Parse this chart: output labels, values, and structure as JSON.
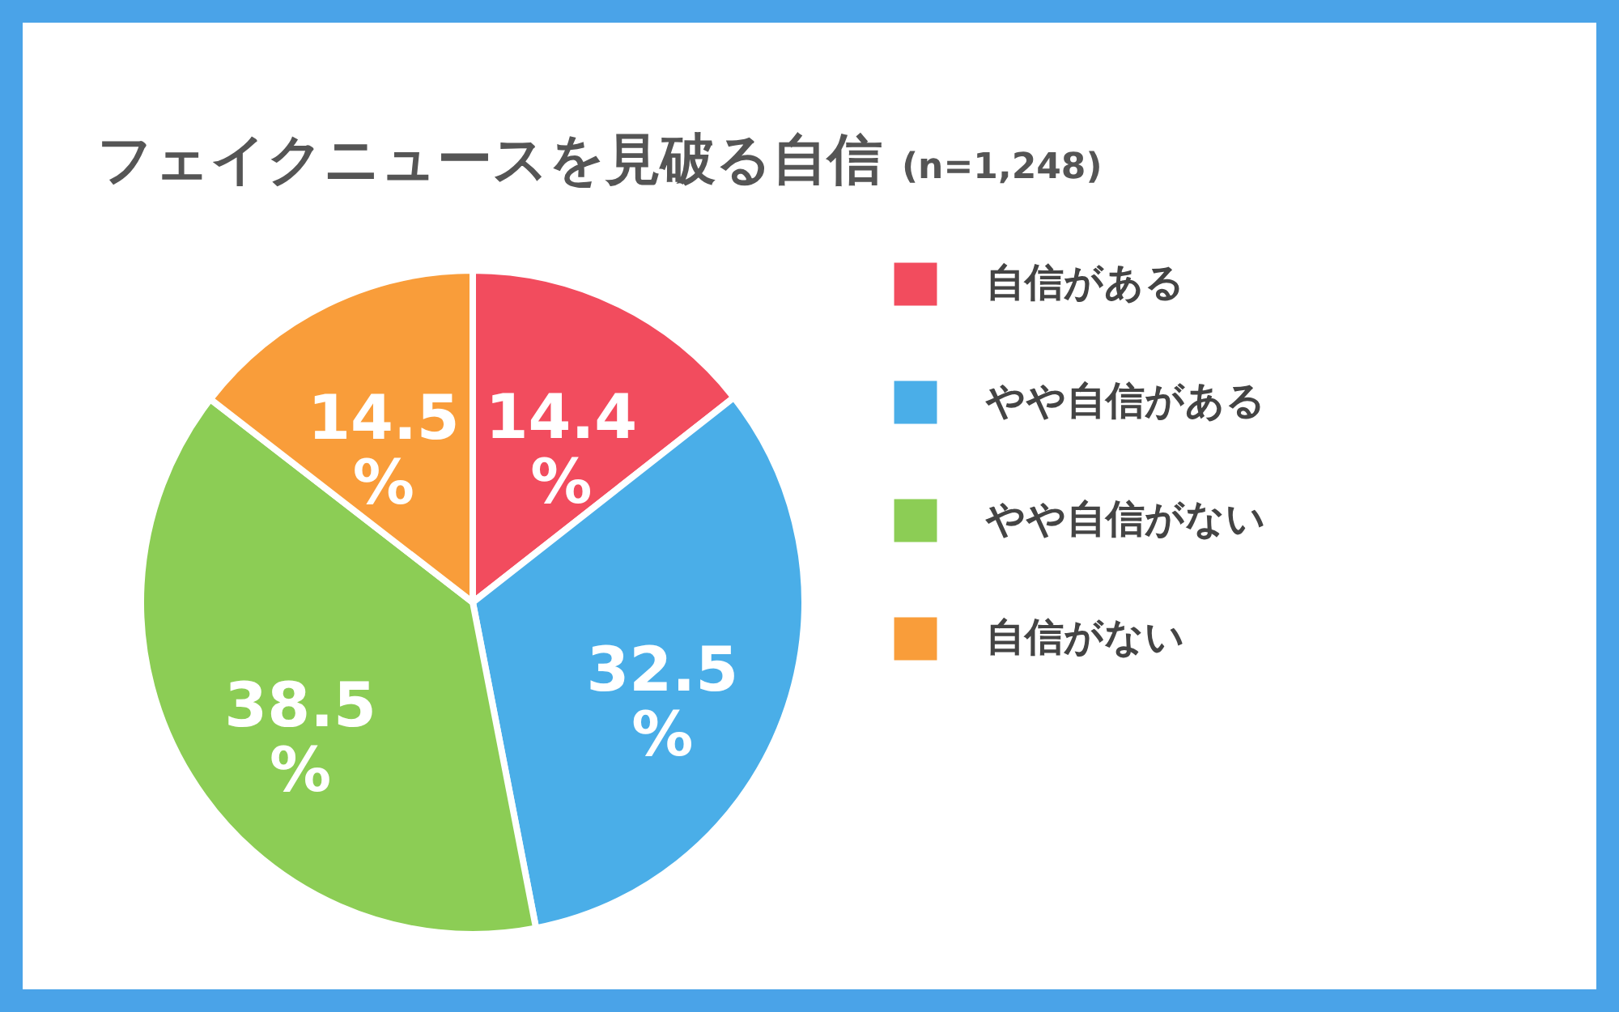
{
  "chart_data": {
    "type": "pie",
    "title": "フェイクニュースを見破る自信",
    "subtitle": "(n=1,248)",
    "categories": [
      "自信がある",
      "やや自信がある",
      "やや自信がない",
      "自信がない"
    ],
    "values": [
      14.4,
      32.5,
      38.5,
      14.5
    ],
    "value_labels": [
      "14.4%",
      "32.5%",
      "38.5%",
      "14.5%"
    ],
    "colors": [
      "#f24c5e",
      "#4aaee8",
      "#8ccd55",
      "#f99d3a"
    ],
    "legend": "right"
  }
}
